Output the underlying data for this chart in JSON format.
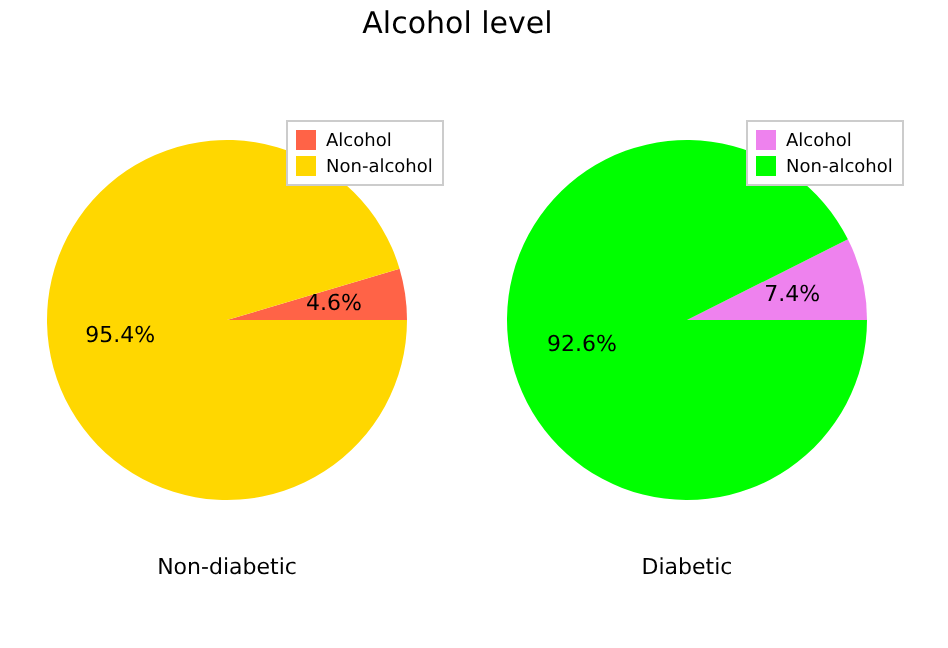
{
  "chart_data": [
    {
      "type": "pie",
      "title": "Alcohol level",
      "xlabel": "Non-diabetic",
      "categories": [
        "Alcohol",
        "Non-alcohol"
      ],
      "values": [
        4.6,
        95.4
      ],
      "colors": [
        "#ff6347",
        "#ffd700"
      ],
      "value_labels": [
        "4.6%",
        "95.4%"
      ],
      "legend": "top right"
    },
    {
      "type": "pie",
      "xlabel": "Diabetic",
      "categories": [
        "Alcohol",
        "Non-alcohol"
      ],
      "values": [
        7.4,
        92.6
      ],
      "colors": [
        "#ee82ee",
        "#00ff00"
      ],
      "value_labels": [
        "7.4%",
        "92.6%"
      ],
      "legend": "top right"
    }
  ]
}
